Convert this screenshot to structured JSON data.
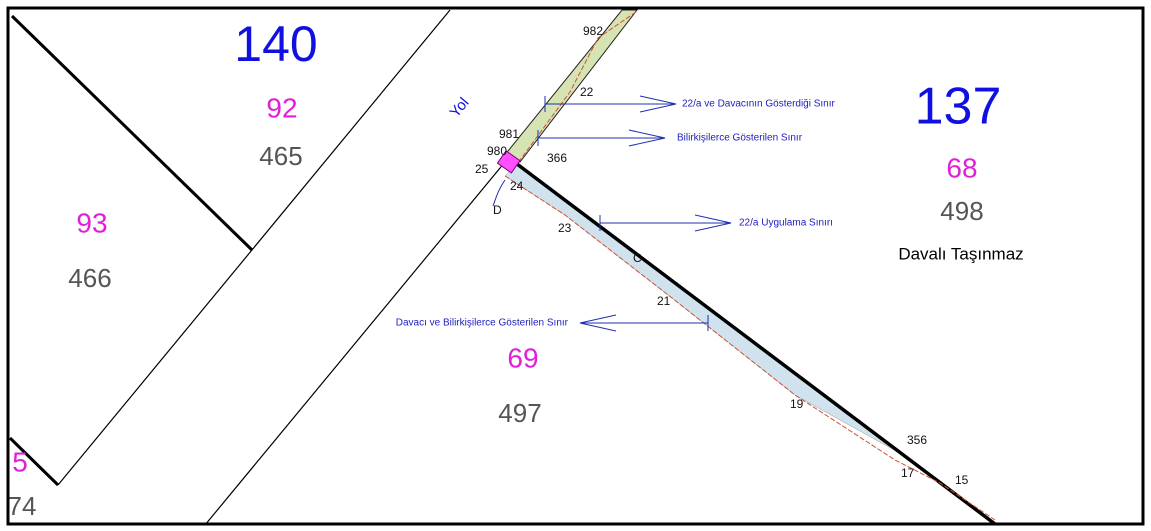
{
  "parcels": [
    {
      "block": "140",
      "parcel": "92",
      "number": "465"
    },
    {
      "block": "137",
      "parcel": "68",
      "number": "498",
      "note": "Davalı Taşınmaz"
    },
    {
      "parcel": "93",
      "number": "466"
    },
    {
      "parcel": "69",
      "number": "497"
    },
    {
      "parcel": "5",
      "number": "74"
    }
  ],
  "road": "Yol",
  "points": [
    "982",
    "22",
    "981",
    "980",
    "366",
    "25",
    "24",
    "D",
    "23",
    "C",
    "21",
    "19",
    "356",
    "17",
    "15"
  ],
  "boundaries": [
    "22/a ve Davacının Gösterdiği Sınır",
    "Bilirkişilerce Gösterilen Sınır",
    "22/a Uygulama Sınırı",
    "Davacı ve Bilirkişilerce Gösterilen Sınır"
  ]
}
